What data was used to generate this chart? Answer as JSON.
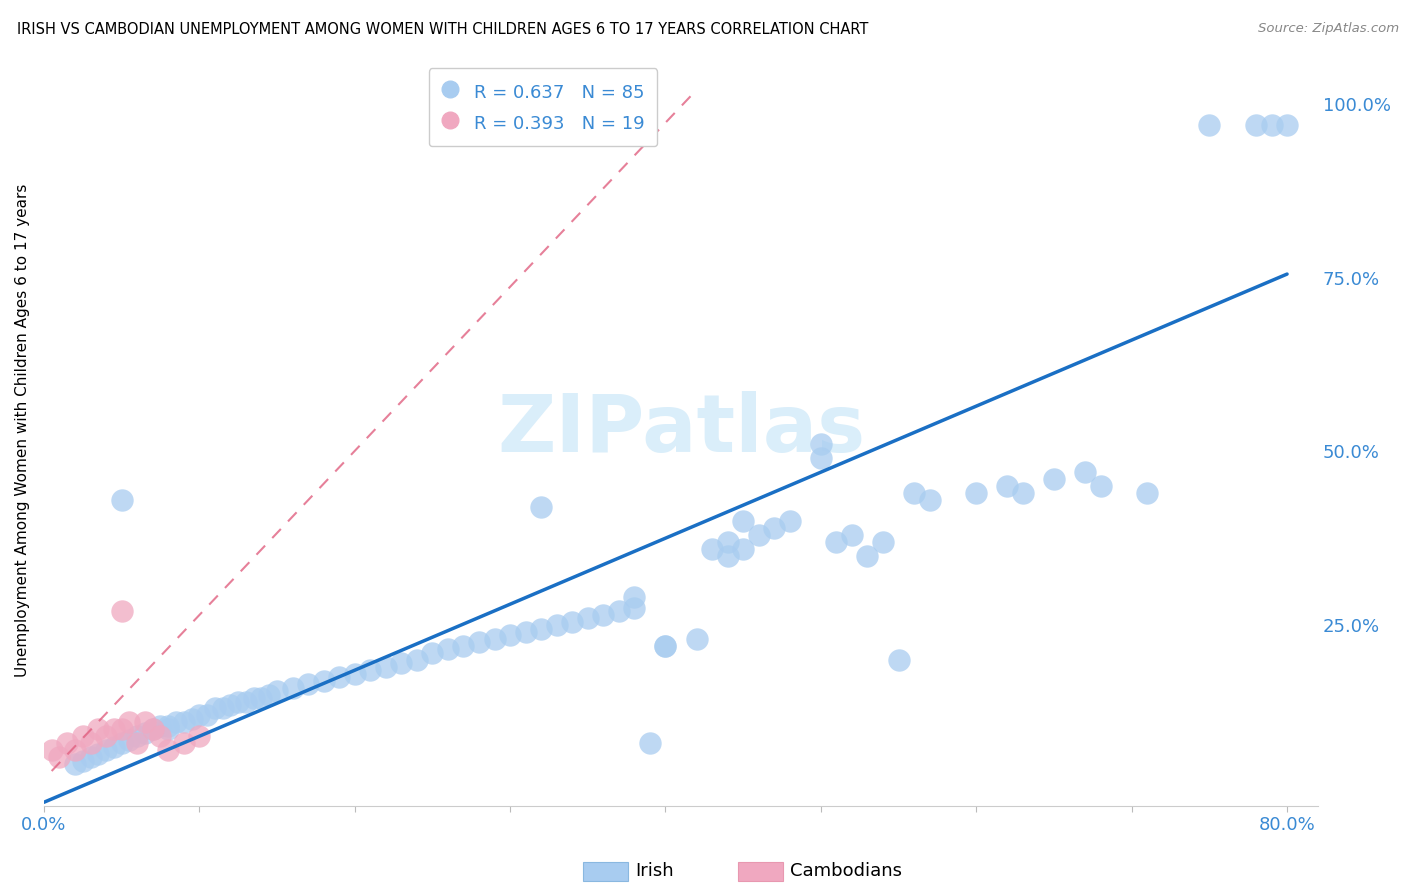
{
  "title": "IRISH VS CAMBODIAN UNEMPLOYMENT AMONG WOMEN WITH CHILDREN AGES 6 TO 17 YEARS CORRELATION CHART",
  "source": "Source: ZipAtlas.com",
  "ylabel": "Unemployment Among Women with Children Ages 6 to 17 years",
  "xlim": [
    0.0,
    0.82
  ],
  "ylim": [
    -0.01,
    1.07
  ],
  "irish_R": 0.637,
  "irish_N": 85,
  "cambodian_R": 0.393,
  "cambodian_N": 19,
  "irish_color": "#a8ccf0",
  "cambodian_color": "#f0a8c0",
  "irish_line_color": "#1a6fc4",
  "cambodian_line_color": "#e06080",
  "axis_label_color": "#3a8ad4",
  "grid_color": "#e8e8e8",
  "watermark_color": "#daeefa",
  "irish_x": [
    0.02,
    0.025,
    0.03,
    0.035,
    0.04,
    0.045,
    0.05,
    0.055,
    0.06,
    0.065,
    0.07,
    0.075,
    0.08,
    0.085,
    0.09,
    0.095,
    0.1,
    0.105,
    0.11,
    0.115,
    0.12,
    0.125,
    0.13,
    0.135,
    0.14,
    0.145,
    0.15,
    0.16,
    0.17,
    0.18,
    0.19,
    0.2,
    0.21,
    0.22,
    0.23,
    0.24,
    0.25,
    0.26,
    0.27,
    0.28,
    0.29,
    0.3,
    0.31,
    0.32,
    0.33,
    0.34,
    0.35,
    0.36,
    0.37,
    0.38,
    0.39,
    0.4,
    0.42,
    0.43,
    0.44,
    0.45,
    0.46,
    0.47,
    0.48,
    0.5,
    0.51,
    0.52,
    0.53,
    0.54,
    0.55,
    0.56,
    0.57,
    0.6,
    0.62,
    0.63,
    0.65,
    0.67,
    0.68,
    0.71,
    0.75,
    0.78,
    0.79,
    0.8,
    0.5,
    0.44,
    0.38,
    0.32,
    0.4,
    0.45,
    0.05,
    0.08
  ],
  "irish_y": [
    0.05,
    0.055,
    0.06,
    0.065,
    0.07,
    0.075,
    0.08,
    0.085,
    0.09,
    0.095,
    0.1,
    0.105,
    0.105,
    0.11,
    0.11,
    0.115,
    0.12,
    0.12,
    0.13,
    0.13,
    0.135,
    0.14,
    0.14,
    0.145,
    0.145,
    0.15,
    0.155,
    0.16,
    0.165,
    0.17,
    0.175,
    0.18,
    0.185,
    0.19,
    0.195,
    0.2,
    0.21,
    0.215,
    0.22,
    0.225,
    0.23,
    0.235,
    0.24,
    0.245,
    0.25,
    0.255,
    0.26,
    0.265,
    0.27,
    0.275,
    0.08,
    0.22,
    0.23,
    0.36,
    0.37,
    0.36,
    0.38,
    0.39,
    0.4,
    0.51,
    0.37,
    0.38,
    0.35,
    0.37,
    0.2,
    0.44,
    0.43,
    0.44,
    0.45,
    0.44,
    0.46,
    0.47,
    0.45,
    0.44,
    0.97,
    0.97,
    0.97,
    0.97,
    0.49,
    0.35,
    0.29,
    0.42,
    0.22,
    0.4,
    0.43,
    0.1
  ],
  "cambodian_x": [
    0.005,
    0.01,
    0.015,
    0.02,
    0.025,
    0.03,
    0.035,
    0.04,
    0.045,
    0.05,
    0.055,
    0.06,
    0.065,
    0.07,
    0.075,
    0.08,
    0.09,
    0.1,
    0.05
  ],
  "cambodian_y": [
    0.07,
    0.06,
    0.08,
    0.07,
    0.09,
    0.08,
    0.1,
    0.09,
    0.1,
    0.1,
    0.11,
    0.08,
    0.11,
    0.1,
    0.09,
    0.07,
    0.08,
    0.09,
    0.27
  ],
  "irish_line_x": [
    0.0,
    0.8
  ],
  "irish_line_y": [
    -0.005,
    0.755
  ],
  "cambodian_line_x": [
    0.005,
    0.42
  ],
  "cambodian_line_y": [
    0.04,
    1.02
  ]
}
